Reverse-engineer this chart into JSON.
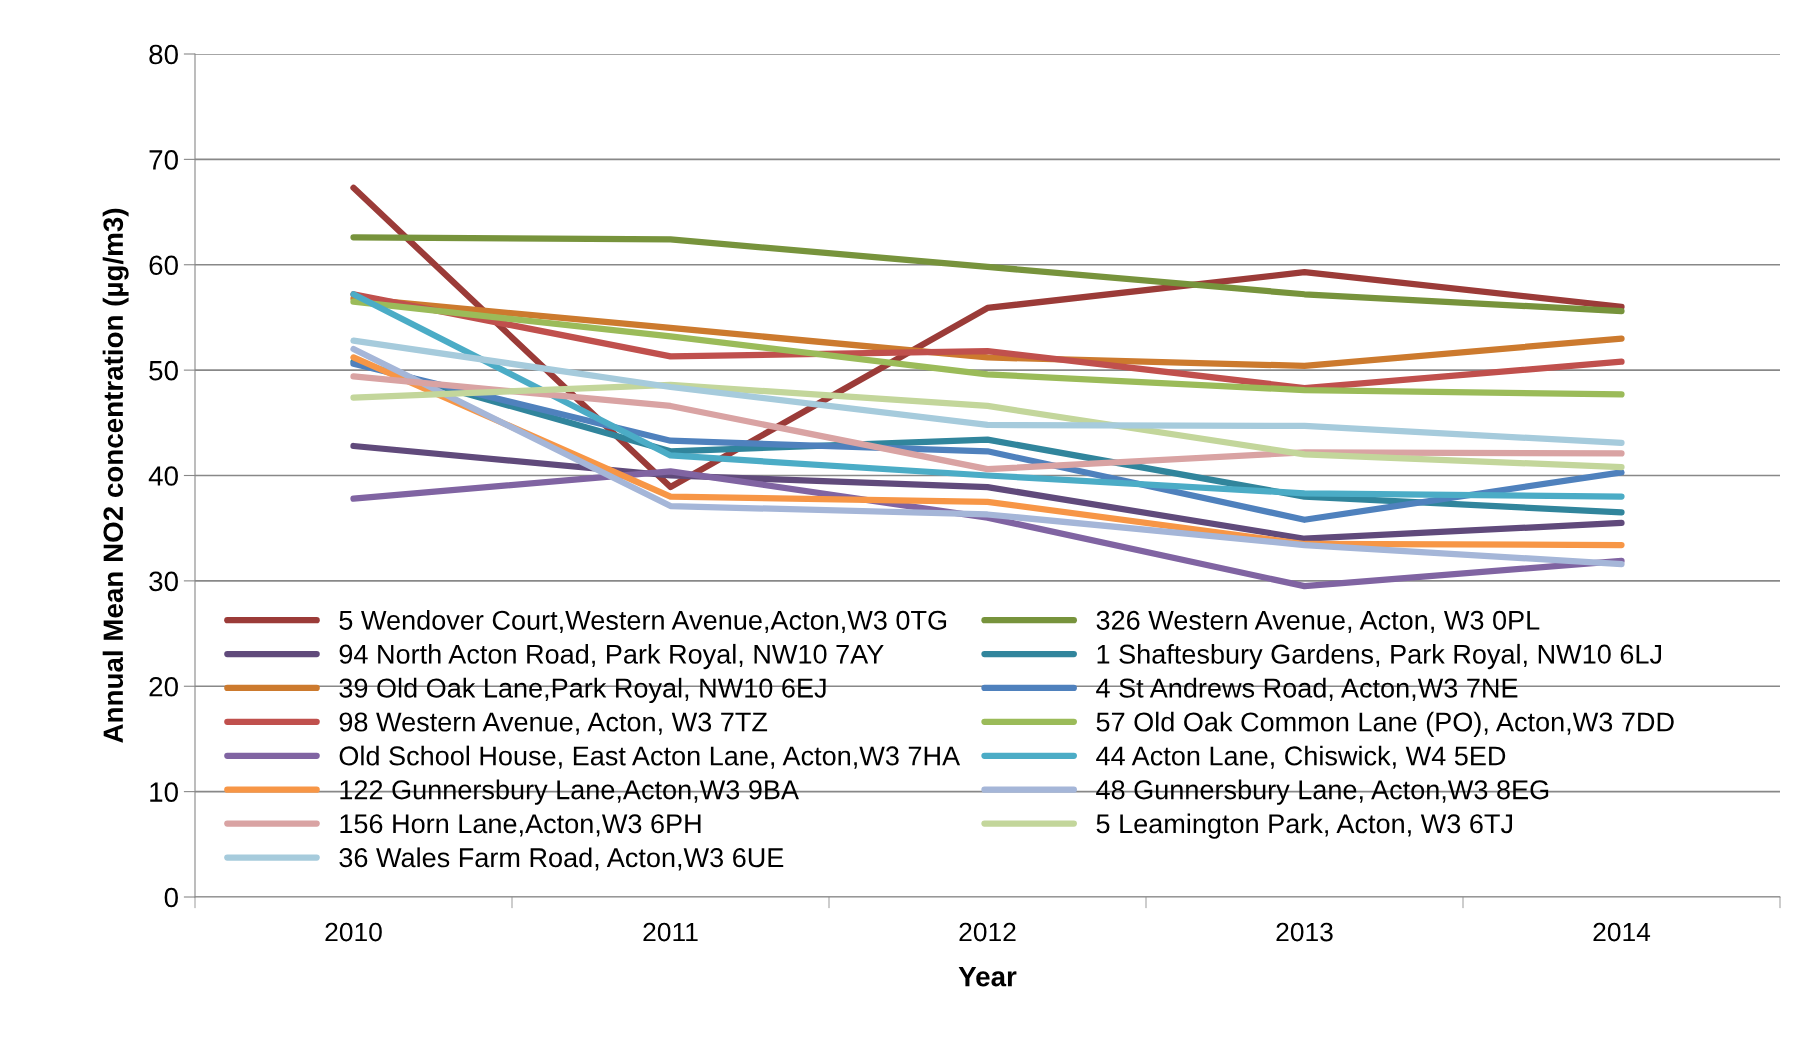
{
  "chart_data": {
    "type": "line",
    "xlabel": "Year",
    "ylabel": "Annual Mean NO2 concentration (µg/m3)",
    "categories": [
      "2010",
      "2011",
      "2012",
      "2013",
      "2014"
    ],
    "ylim": [
      0,
      80
    ],
    "yticks": [
      0,
      10,
      20,
      30,
      40,
      50,
      60,
      70,
      80
    ],
    "grid": "y",
    "legend": "bottom left",
    "marker": "none",
    "line_style": "solid",
    "series": [
      {
        "name": "5 Wendover Court,Western Avenue,Acton,W3 0TG",
        "color": "#9b3b38",
        "values": [
          67.3,
          38.9,
          55.9,
          59.3,
          56.0
        ]
      },
      {
        "name": "326 Western Avenue, Acton, W3 0PL",
        "color": "#77933c",
        "values": [
          62.6,
          62.4,
          59.8,
          57.2,
          55.6
        ]
      },
      {
        "name": "94 North Acton Road, Park Royal, NW10 7AY",
        "color": "#604a7b",
        "values": [
          42.8,
          40.0,
          38.9,
          34.0,
          35.5
        ]
      },
      {
        "name": "1 Shaftesbury Gardens, Park Royal, NW10 6LJ",
        "color": "#31859c",
        "values": [
          50.8,
          42.3,
          43.4,
          38.0,
          36.5
        ]
      },
      {
        "name": "39 Old Oak Lane,Park Royal, NW10 6EJ",
        "color": "#cc7a2e",
        "values": [
          56.8,
          54.0,
          51.2,
          50.4,
          53.0
        ]
      },
      {
        "name": "4 St Andrews Road, Acton,W3 7NE",
        "color": "#4f81bd",
        "values": [
          50.6,
          43.3,
          42.3,
          35.8,
          40.3
        ]
      },
      {
        "name": "98 Western Avenue, Acton, W3 7TZ",
        "color": "#c0504d",
        "values": [
          57.2,
          51.3,
          51.8,
          48.3,
          50.8
        ]
      },
      {
        "name": "57 Old Oak Common Lane (PO), Acton,W3 7DD",
        "color": "#9bbb59",
        "values": [
          56.5,
          53.2,
          49.6,
          48.1,
          47.7
        ]
      },
      {
        "name": "Old School House, East Acton Lane, Acton,W3 7HA",
        "color": "#8064a2",
        "values": [
          37.8,
          40.4,
          36.0,
          29.5,
          31.9
        ]
      },
      {
        "name": "44 Acton Lane, Chiswick, W4 5ED",
        "color": "#4bacc6",
        "values": [
          57.2,
          41.9,
          40.0,
          38.3,
          38.0
        ]
      },
      {
        "name": "122 Gunnersbury Lane,Acton,W3 9BA",
        "color": "#f79646",
        "values": [
          51.2,
          38.0,
          37.5,
          33.5,
          33.4
        ]
      },
      {
        "name": "48 Gunnersbury Lane, Acton,W3 8EG",
        "color": "#a5b6d8",
        "values": [
          52.0,
          37.1,
          36.3,
          33.4,
          31.6
        ]
      },
      {
        "name": "156 Horn Lane,Acton,W3 6PH",
        "color": "#d9a3a3",
        "values": [
          49.4,
          46.6,
          40.6,
          42.2,
          42.1
        ]
      },
      {
        "name": "5 Leamington Park, Acton, W3 6TJ",
        "color": "#c3d69b",
        "values": [
          47.4,
          48.6,
          46.6,
          42.0,
          40.8
        ]
      },
      {
        "name": "36 Wales Farm Road, Acton,W3 6UE",
        "color": "#a6cbdc",
        "values": [
          52.8,
          48.4,
          44.8,
          44.7,
          43.1
        ]
      }
    ]
  }
}
